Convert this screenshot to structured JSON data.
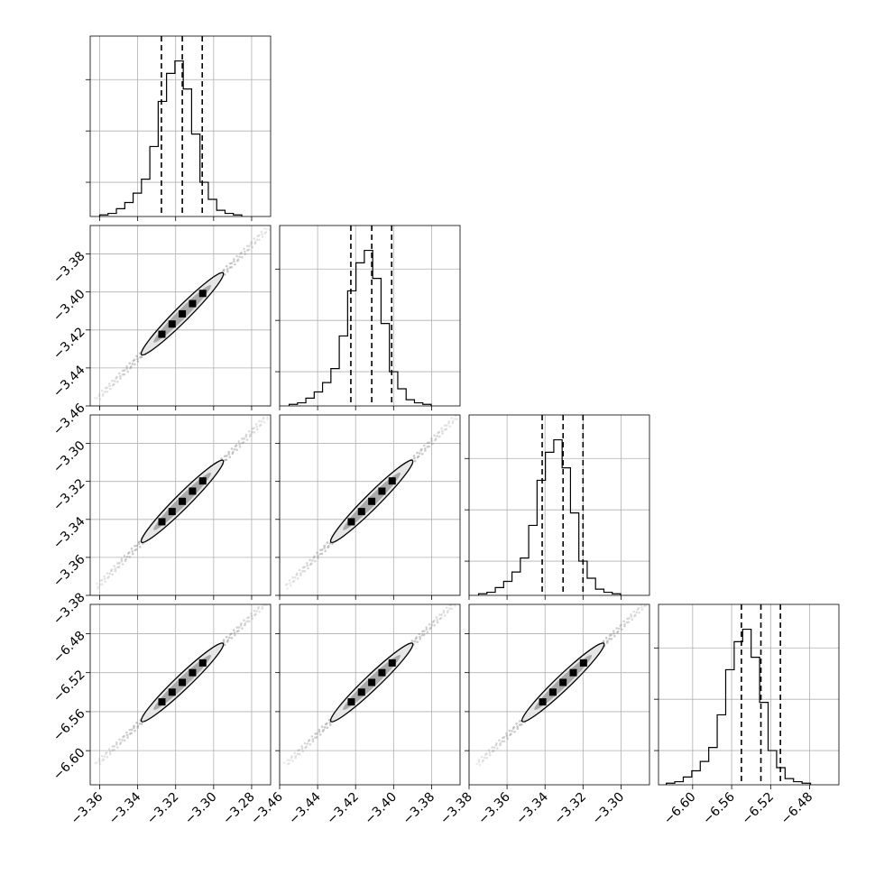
{
  "chart_data": {
    "type": "corner",
    "n_params": 4,
    "grid": true,
    "params": [
      {
        "range": [
          -3.365,
          -3.27
        ],
        "xticks": [
          "−3.36",
          "−3.34",
          "−3.32",
          "−3.30",
          "−3.28"
        ],
        "xtick_values": [
          -3.36,
          -3.34,
          -3.32,
          -3.3,
          -3.28
        ],
        "yticks": [],
        "ytick_values": [],
        "quantiles": [
          -3.3275,
          -3.3165,
          -3.306
        ],
        "hist": {
          "edges_start": -3.36,
          "bin_width": 0.0044,
          "counts": [
            1,
            2,
            5,
            9,
            15,
            24,
            45,
            74,
            92,
            100,
            82,
            53,
            22,
            11,
            4,
            2,
            1
          ]
        }
      },
      {
        "range": [
          -3.46,
          -3.365
        ],
        "xticks": [
          "−3.46",
          "−3.44",
          "−3.42",
          "−3.40",
          "−3.38"
        ],
        "xtick_values": [
          -3.46,
          -3.44,
          -3.42,
          -3.4,
          -3.38
        ],
        "yticks": [
          "−3.38",
          "−3.40",
          "−3.42",
          "−3.44",
          "−3.46"
        ],
        "ytick_values": [
          -3.38,
          -3.4,
          -3.42,
          -3.44,
          -3.46
        ],
        "quantiles": [
          -3.4225,
          -3.4115,
          -3.401
        ],
        "hist": {
          "edges_start": -3.455,
          "bin_width": 0.0044,
          "counts": [
            1,
            2,
            5,
            9,
            15,
            24,
            45,
            74,
            92,
            100,
            82,
            53,
            22,
            11,
            4,
            2,
            1
          ]
        }
      },
      {
        "range": [
          -3.38,
          -3.285
        ],
        "xticks": [
          "−3.38",
          "−3.36",
          "−3.34",
          "−3.32",
          "−3.30"
        ],
        "xtick_values": [
          -3.38,
          -3.36,
          -3.34,
          -3.32,
          -3.3
        ],
        "yticks": [
          "−3.30",
          "−3.32",
          "−3.34",
          "−3.36",
          "−3.38"
        ],
        "ytick_values": [
          -3.3,
          -3.32,
          -3.34,
          -3.36,
          -3.38
        ],
        "quantiles": [
          -3.3415,
          -3.3305,
          -3.32
        ],
        "hist": {
          "edges_start": -3.375,
          "bin_width": 0.0044,
          "counts": [
            1,
            2,
            5,
            9,
            15,
            24,
            45,
            74,
            92,
            100,
            82,
            53,
            22,
            11,
            4,
            2,
            1
          ]
        }
      },
      {
        "range": [
          -6.635,
          -6.45
        ],
        "xticks": [
          "−6.60",
          "−6.56",
          "−6.52",
          "−6.48"
        ],
        "xtick_values": [
          -6.6,
          -6.56,
          -6.52,
          -6.48
        ],
        "yticks": [
          "−6.48",
          "−6.52",
          "−6.56",
          "−6.60"
        ],
        "ytick_values": [
          -6.48,
          -6.52,
          -6.56,
          -6.6
        ],
        "quantiles": [
          -6.55,
          -6.53,
          -6.51
        ],
        "hist": {
          "edges_start": -6.627,
          "bin_width": 0.0087,
          "counts": [
            1,
            2,
            5,
            9,
            15,
            24,
            45,
            74,
            92,
            100,
            82,
            53,
            22,
            11,
            4,
            2,
            1
          ]
        }
      }
    ],
    "hist_ylim_max": 1.16,
    "hist_yticks": [
      0.22,
      0.55,
      0.88
    ]
  }
}
